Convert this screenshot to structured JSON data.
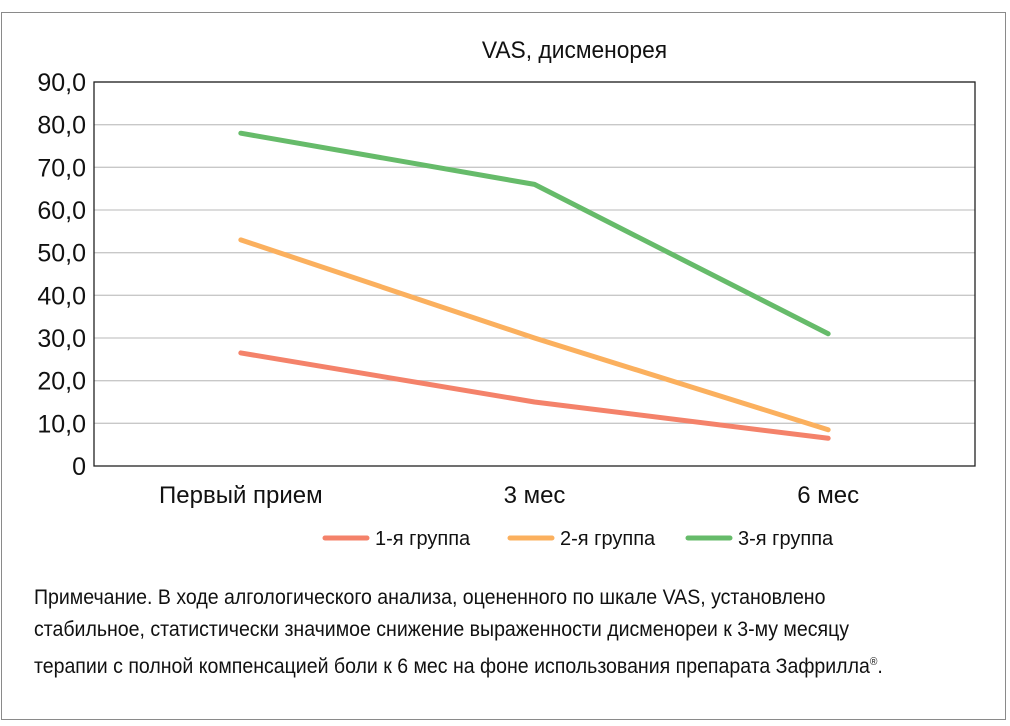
{
  "chart_data": {
    "type": "line",
    "title": "VAS, дисменорея",
    "categories": [
      "Первый прием",
      "3 мес",
      "6 мес"
    ],
    "ylim": [
      0,
      90
    ],
    "yticks": [
      "0",
      "10,0",
      "20,0",
      "30,0",
      "40,0",
      "50,0",
      "60,0",
      "70,0",
      "80,0",
      "90,0"
    ],
    "grid": true,
    "legend_position": "bottom",
    "series": [
      {
        "name": "1-я группа",
        "color": "#f4826a",
        "values": [
          26.5,
          15.0,
          6.5
        ]
      },
      {
        "name": "2-я группа",
        "color": "#fbb05e",
        "values": [
          53.0,
          30.0,
          8.5
        ]
      },
      {
        "name": "3-я группа",
        "color": "#66bb6a",
        "values": [
          78.0,
          66.0,
          31.0
        ]
      }
    ]
  },
  "note": {
    "text": "Примечание. В ходе алгологического анализа, оцененного по шкале VAS, установлено стабильное, статистически значимое снижение выраженности дисменореи к 3-му месяцу терапии с полной компенсацией боли к 6 мес на фоне использования препарата Зафрилла",
    "mark": "®",
    "end": "."
  }
}
